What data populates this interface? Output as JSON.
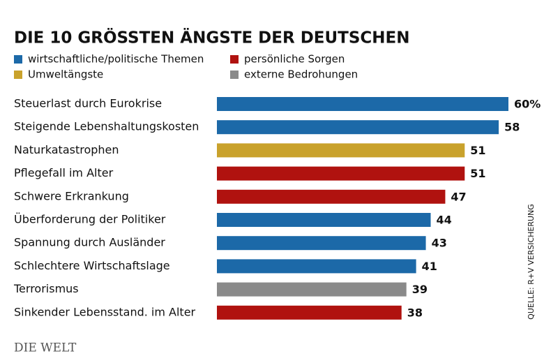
{
  "chart_data": {
    "type": "bar",
    "orientation": "horizontal",
    "title": "DIE 10 GRÖSSTEN ÄNGSTE DER DEUTSCHEN",
    "categories": [
      "Steuerlast durch Eurokrise",
      "Steigende Lebenshaltungskosten",
      "Naturkatastrophen",
      "Pflegefall im Alter",
      "Schwere Erkrankung",
      "Überforderung der Politiker",
      "Spannung durch Ausländer",
      "Schlechtere Wirtschaftslage",
      "Terrorismus",
      "Sinkender Lebensstand. im Alter"
    ],
    "series": [
      {
        "name": "wirtschaftliche/politische Themen",
        "color": "#1c69a8",
        "values": [
          60,
          58,
          null,
          null,
          null,
          44,
          43,
          41,
          null,
          null
        ],
        "value_labels": [
          "60%",
          "58",
          null,
          null,
          null,
          "44",
          "43",
          "41",
          null,
          null
        ]
      },
      {
        "name": "persönliche Sorgen",
        "color": "#b0120f",
        "values": [
          null,
          null,
          null,
          51,
          47,
          null,
          null,
          null,
          null,
          38
        ]
      },
      {
        "name": "Umweltängste",
        "color": "#c9a22c",
        "values": [
          null,
          null,
          51,
          null,
          null,
          null,
          null,
          null,
          null,
          null
        ]
      },
      {
        "name": "externe Bedrohungen",
        "color": "#8a8a8a",
        "values": [
          null,
          null,
          null,
          null,
          null,
          null,
          null,
          null,
          39,
          null
        ]
      }
    ],
    "xlim": [
      0,
      60
    ],
    "source": "QUELLE: R+V VERSICHERUNG",
    "logo": "DIE WELT"
  }
}
